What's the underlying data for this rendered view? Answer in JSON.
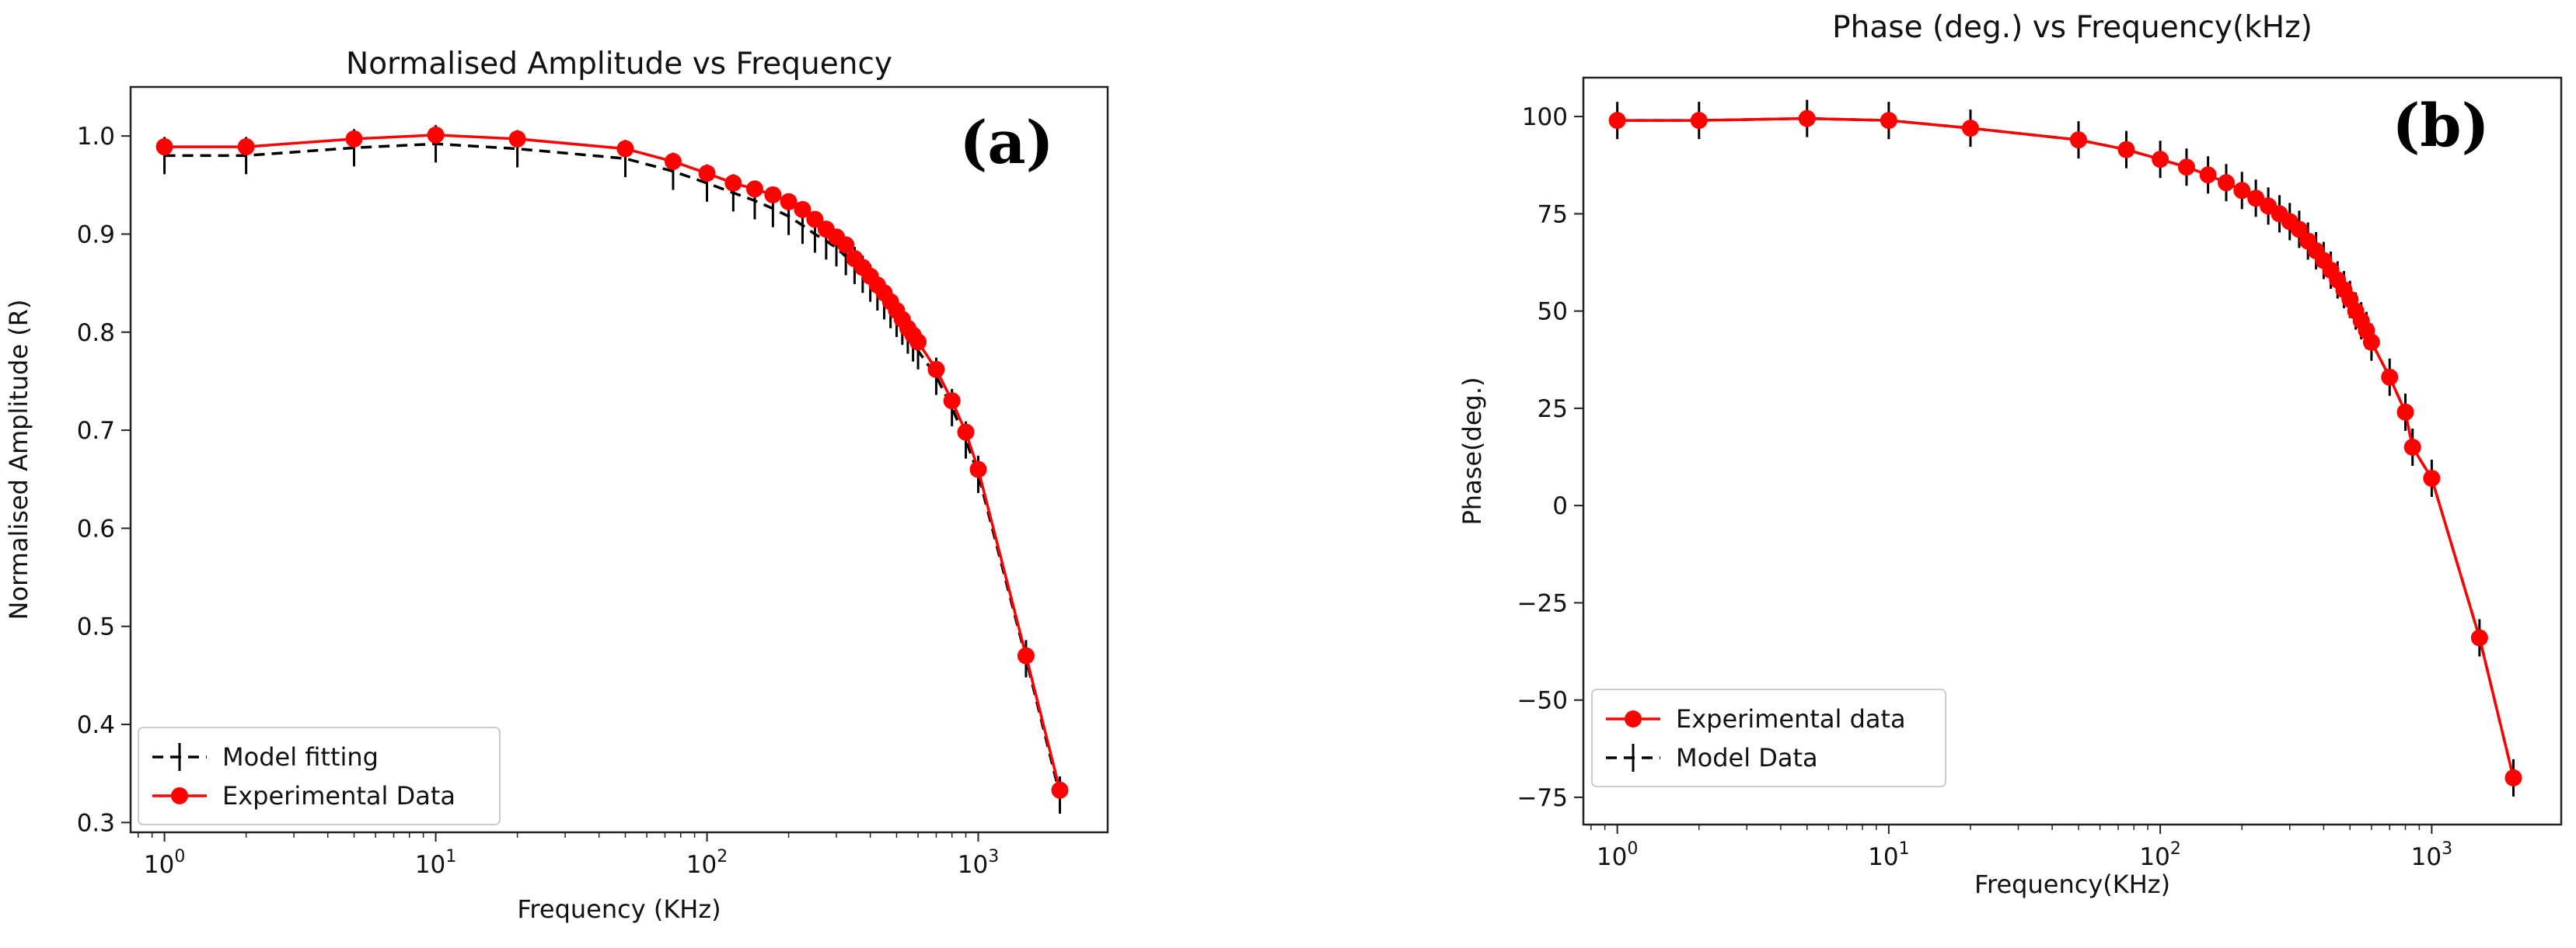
{
  "chart_data": [
    {
      "type": "line",
      "panel_label": "(a)",
      "title": "Normalised Amplitude vs Frequency",
      "xlabel": "Frequency (KHz)",
      "ylabel": "Normalised Amplitude (R)",
      "xscale": "log",
      "xlim": [
        0.75,
        3000
      ],
      "ylim": [
        0.29,
        1.05
      ],
      "xticks": [
        {
          "value": 1,
          "base": "10",
          "exp": "0"
        },
        {
          "value": 10,
          "base": "10",
          "exp": "1"
        },
        {
          "value": 100,
          "base": "10",
          "exp": "2"
        },
        {
          "value": 1000,
          "base": "10",
          "exp": "3"
        }
      ],
      "yticks": [
        {
          "value": 0.3,
          "label": "0.3"
        },
        {
          "value": 0.4,
          "label": "0.4"
        },
        {
          "value": 0.5,
          "label": "0.5"
        },
        {
          "value": 0.6,
          "label": "0.6"
        },
        {
          "value": 0.7,
          "label": "0.7"
        },
        {
          "value": 0.8,
          "label": "0.8"
        },
        {
          "value": 0.9,
          "label": "0.9"
        },
        {
          "value": 1.0,
          "label": "1.0"
        }
      ],
      "legend_position": "lower-left",
      "series": [
        {
          "name": "Model fitting",
          "style": "dashed",
          "color": "#000000",
          "error_bars": true,
          "x": [
            1,
            2,
            5,
            10,
            20,
            50,
            75,
            100,
            125,
            150,
            175,
            200,
            225,
            250,
            275,
            300,
            325,
            350,
            375,
            400,
            425,
            450,
            475,
            500,
            525,
            550,
            575,
            600,
            700,
            800,
            900,
            1000,
            1500,
            2000
          ],
          "y": [
            0.98,
            0.98,
            0.988,
            0.992,
            0.987,
            0.977,
            0.964,
            0.952,
            0.942,
            0.934,
            0.926,
            0.918,
            0.909,
            0.9,
            0.893,
            0.886,
            0.877,
            0.868,
            0.859,
            0.85,
            0.841,
            0.832,
            0.823,
            0.814,
            0.806,
            0.797,
            0.789,
            0.781,
            0.755,
            0.723,
            0.69,
            0.655,
            0.467,
            0.328
          ]
        },
        {
          "name": "Experimental Data",
          "style": "solid-markers",
          "color": "#ff0000",
          "x": [
            1,
            2,
            5,
            10,
            20,
            50,
            75,
            100,
            125,
            150,
            175,
            200,
            225,
            250,
            275,
            300,
            325,
            350,
            375,
            400,
            425,
            450,
            475,
            500,
            525,
            550,
            575,
            600,
            700,
            800,
            900,
            1000,
            1500,
            2000
          ],
          "y": [
            0.989,
            0.989,
            0.997,
            1.001,
            0.997,
            0.987,
            0.974,
            0.962,
            0.952,
            0.946,
            0.94,
            0.933,
            0.925,
            0.915,
            0.905,
            0.897,
            0.889,
            0.875,
            0.866,
            0.857,
            0.848,
            0.84,
            0.831,
            0.822,
            0.813,
            0.804,
            0.797,
            0.79,
            0.762,
            0.73,
            0.698,
            0.66,
            0.47,
            0.333
          ]
        }
      ]
    },
    {
      "type": "line",
      "panel_label": "(b)",
      "title": "Phase (deg.) vs Frequency(kHz)",
      "xlabel": "Frequency(KHz)",
      "ylabel": "Phase(deg.)",
      "xscale": "log",
      "xlim": [
        0.75,
        3000
      ],
      "ylim": [
        -82,
        110
      ],
      "xticks": [
        {
          "value": 1,
          "base": "10",
          "exp": "0"
        },
        {
          "value": 10,
          "base": "10",
          "exp": "1"
        },
        {
          "value": 100,
          "base": "10",
          "exp": "2"
        },
        {
          "value": 1000,
          "base": "10",
          "exp": "3"
        }
      ],
      "yticks": [
        {
          "value": 100,
          "label": "100"
        },
        {
          "value": 75,
          "label": "75"
        },
        {
          "value": 50,
          "label": "50"
        },
        {
          "value": 25,
          "label": "25"
        },
        {
          "value": 0,
          "label": "0"
        },
        {
          "value": -25,
          "label": "−25"
        },
        {
          "value": -50,
          "label": "−50"
        },
        {
          "value": -75,
          "label": "−75"
        }
      ],
      "legend_position": "lower-left",
      "series": [
        {
          "name": "Experimental data",
          "style": "solid-markers",
          "color": "#ff0000",
          "x": [
            1,
            2,
            5,
            10,
            20,
            50,
            75,
            100,
            125,
            150,
            175,
            200,
            225,
            250,
            275,
            300,
            325,
            350,
            375,
            400,
            425,
            450,
            475,
            500,
            525,
            550,
            575,
            600,
            700,
            800,
            850,
            1000,
            1500,
            2000
          ],
          "y": [
            99,
            99,
            99.5,
            99,
            97,
            94,
            91.5,
            89,
            87,
            85,
            83,
            81,
            79,
            77,
            75,
            73,
            71,
            68,
            65.5,
            63,
            60.5,
            58,
            55.5,
            53,
            50,
            47.5,
            45,
            42,
            33,
            24,
            15,
            7,
            -34,
            -70
          ]
        },
        {
          "name": "Model Data",
          "style": "dashed",
          "color": "#000000",
          "error_bars": true,
          "x": [
            1,
            2,
            5,
            10,
            20,
            50,
            75,
            100,
            125,
            150,
            175,
            200,
            225,
            250,
            275,
            300,
            325,
            350,
            375,
            400,
            425,
            450,
            475,
            500,
            525,
            550,
            575,
            600,
            700,
            800,
            850,
            1000,
            1500,
            2000
          ],
          "y": [
            99,
            99,
            99.5,
            99,
            97,
            94,
            91.5,
            89,
            87,
            85,
            83,
            81,
            79,
            77,
            75,
            73,
            71,
            68,
            65.5,
            63,
            60.5,
            58,
            55.5,
            53,
            50,
            47.5,
            45,
            42,
            33,
            24,
            15,
            7,
            -34,
            -70
          ]
        }
      ]
    }
  ]
}
